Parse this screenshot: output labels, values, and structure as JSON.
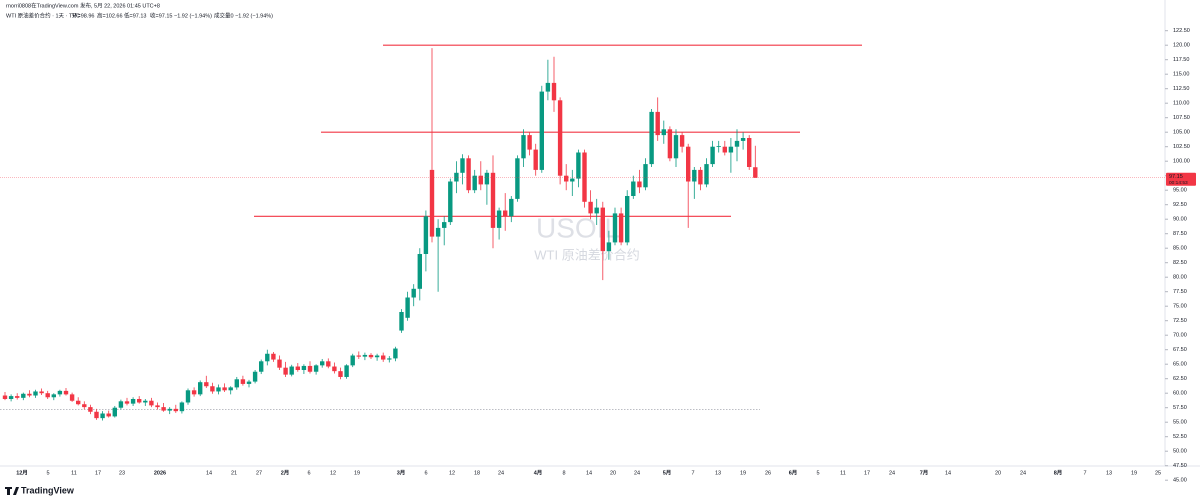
{
  "credit": "rnorri0808在TradingView.com 发布, 5月 22, 2026 01:45 UTC+8",
  "legend": [
    "WTI 原油差价合约 · 1天 · TVC",
    "开=98.96",
    "高=102.66",
    "低=97.13",
    "收=97.15 −1.92 (−1.94%)",
    "成交量0 −1.92 (−1.94%)"
  ],
  "watermark": {
    "symbol": "USOIL",
    "name": "WTI 原油差价合约"
  },
  "countdown": "00:14:53",
  "brand": "TradingView",
  "chart_data": {
    "type": "candlestick",
    "up_color": "#089981",
    "down_color": "#f23645",
    "ylim": [
      44,
      124
    ],
    "yticks": [
      {
        "value": 45,
        "label": "45.00"
      },
      {
        "value": 47.5,
        "label": "47.50"
      },
      {
        "value": 50,
        "label": "50.00"
      },
      {
        "value": 52.5,
        "label": "52.50"
      },
      {
        "value": 55,
        "label": "55.00"
      },
      {
        "value": 57.5,
        "label": "57.50"
      },
      {
        "value": 60,
        "label": "60.00"
      },
      {
        "value": 62.5,
        "label": "62.50"
      },
      {
        "value": 65,
        "label": "65.00"
      },
      {
        "value": 67.5,
        "label": "67.50"
      },
      {
        "value": 70,
        "label": "70.00"
      },
      {
        "value": 72.5,
        "label": "72.50"
      },
      {
        "value": 75,
        "label": "75.00"
      },
      {
        "value": 77.5,
        "label": "77.50"
      },
      {
        "value": 80,
        "label": "80.00"
      },
      {
        "value": 82.5,
        "label": "82.50"
      },
      {
        "value": 85,
        "label": "85.00"
      },
      {
        "value": 87.5,
        "label": "87.50"
      },
      {
        "value": 90,
        "label": "90.00"
      },
      {
        "value": 92.5,
        "label": "92.50"
      },
      {
        "value": 95,
        "label": "95.00"
      },
      {
        "value": 97.5,
        "label": "97.50"
      },
      {
        "value": 100,
        "label": "100.00"
      },
      {
        "value": 102.5,
        "label": "102.50"
      },
      {
        "value": 105,
        "label": "105.00"
      },
      {
        "value": 107.5,
        "label": "107.50"
      },
      {
        "value": 110,
        "label": "110.00"
      },
      {
        "value": 112.5,
        "label": "112.50"
      },
      {
        "value": 115,
        "label": "115.00"
      },
      {
        "value": 117.5,
        "label": "117.50"
      },
      {
        "value": 120,
        "label": "120.00"
      },
      {
        "value": 122.5,
        "label": "122.50"
      }
    ],
    "xticks": [
      "12月",
      "5",
      "11",
      "17",
      "23",
      "2026",
      "14",
      "21",
      "27",
      "2月",
      "6",
      "12",
      "19",
      "3月",
      "6",
      "12",
      "18",
      "24",
      "4月",
      "8",
      "14",
      "20",
      "24",
      "5月",
      "7",
      "13",
      "19",
      "26",
      "6月",
      "5",
      "11",
      "17",
      "24",
      "7月",
      "14",
      "20",
      "24",
      "8月",
      "7",
      "13",
      "19",
      "25"
    ],
    "levels": [
      120,
      105,
      90.5
    ],
    "level_color": "#f23645",
    "dotted_level": 57.2,
    "ohlc": [
      [
        59.6,
        60.2,
        58.8,
        59.0
      ],
      [
        59.0,
        59.8,
        58.6,
        59.5
      ],
      [
        59.5,
        60.0,
        58.9,
        59.2
      ],
      [
        59.2,
        60.1,
        58.8,
        59.9
      ],
      [
        59.9,
        60.5,
        59.3,
        59.6
      ],
      [
        59.6,
        60.6,
        59.2,
        60.3
      ],
      [
        60.3,
        60.8,
        59.7,
        60.0
      ],
      [
        60.0,
        60.4,
        59.0,
        59.3
      ],
      [
        59.3,
        60.0,
        58.8,
        59.8
      ],
      [
        59.8,
        60.6,
        59.4,
        60.4
      ],
      [
        60.4,
        60.9,
        59.6,
        59.8
      ],
      [
        59.8,
        60.1,
        58.5,
        58.7
      ],
      [
        58.7,
        59.3,
        57.9,
        58.1
      ],
      [
        58.1,
        58.6,
        57.2,
        57.6
      ],
      [
        57.6,
        58.0,
        56.4,
        56.8
      ],
      [
        56.8,
        57.3,
        55.4,
        55.7
      ],
      [
        55.7,
        56.9,
        55.3,
        56.5
      ],
      [
        56.5,
        57.0,
        55.8,
        56.0
      ],
      [
        56.0,
        57.8,
        55.8,
        57.5
      ],
      [
        57.5,
        58.9,
        57.2,
        58.6
      ],
      [
        58.6,
        59.2,
        57.9,
        58.2
      ],
      [
        58.2,
        59.3,
        57.8,
        59.0
      ],
      [
        59.0,
        59.5,
        58.2,
        58.4
      ],
      [
        58.4,
        59.0,
        57.8,
        58.7
      ],
      [
        58.7,
        59.2,
        57.6,
        57.9
      ],
      [
        57.9,
        58.4,
        57.2,
        57.6
      ],
      [
        57.6,
        58.3,
        56.8,
        57.0
      ],
      [
        57.0,
        57.6,
        56.4,
        57.3
      ],
      [
        57.3,
        58.0,
        56.6,
        56.9
      ],
      [
        56.9,
        58.6,
        56.5,
        58.4
      ],
      [
        58.4,
        60.8,
        58.0,
        60.5
      ],
      [
        60.5,
        61.0,
        59.4,
        59.8
      ],
      [
        59.8,
        62.2,
        59.5,
        61.9
      ],
      [
        61.9,
        63.0,
        60.9,
        61.2
      ],
      [
        61.2,
        61.8,
        59.9,
        60.3
      ],
      [
        60.3,
        61.5,
        59.8,
        61.0
      ],
      [
        61.0,
        61.7,
        60.2,
        60.5
      ],
      [
        60.5,
        61.2,
        59.8,
        61.0
      ],
      [
        61.0,
        62.8,
        60.6,
        62.4
      ],
      [
        62.4,
        63.0,
        61.3,
        61.6
      ],
      [
        61.6,
        62.3,
        61.0,
        62.0
      ],
      [
        62.0,
        64.0,
        61.7,
        63.7
      ],
      [
        63.7,
        65.8,
        63.3,
        65.5
      ],
      [
        65.5,
        67.5,
        64.8,
        66.8
      ],
      [
        66.8,
        67.1,
        65.4,
        65.8
      ],
      [
        65.8,
        66.5,
        64.0,
        64.4
      ],
      [
        64.4,
        65.4,
        62.8,
        63.2
      ],
      [
        63.2,
        64.9,
        62.9,
        64.6
      ],
      [
        64.6,
        65.2,
        63.7,
        64.0
      ],
      [
        64.0,
        65.0,
        63.3,
        64.7
      ],
      [
        64.7,
        65.5,
        63.4,
        63.7
      ],
      [
        63.7,
        65.0,
        63.2,
        64.8
      ],
      [
        64.8,
        65.9,
        64.4,
        65.5
      ],
      [
        65.5,
        66.0,
        64.3,
        64.6
      ],
      [
        64.6,
        65.3,
        63.4,
        63.8
      ],
      [
        63.8,
        64.4,
        62.4,
        62.8
      ],
      [
        62.8,
        65.0,
        62.5,
        64.8
      ],
      [
        64.8,
        66.8,
        64.5,
        66.5
      ],
      [
        66.5,
        67.2,
        65.9,
        66.3
      ],
      [
        66.3,
        67.0,
        65.7,
        66.6
      ],
      [
        66.6,
        66.9,
        65.9,
        66.2
      ],
      [
        66.2,
        66.8,
        65.6,
        66.5
      ],
      [
        66.5,
        67.0,
        65.4,
        65.8
      ],
      [
        65.8,
        66.4,
        65.3,
        66.0
      ],
      [
        66.0,
        68.0,
        65.5,
        67.7
      ],
      [
        70.8,
        74.5,
        70.4,
        74.0
      ],
      [
        73.0,
        77.5,
        72.5,
        76.5
      ],
      [
        76.5,
        78.8,
        75.0,
        78.0
      ],
      [
        78.0,
        85.0,
        76.0,
        84.0
      ],
      [
        84.0,
        91.5,
        81.0,
        90.5
      ],
      [
        98.5,
        119.5,
        86.0,
        87.0
      ],
      [
        87.0,
        90.0,
        77.5,
        88.5
      ],
      [
        88.5,
        90.5,
        85.5,
        89.5
      ],
      [
        89.5,
        97.0,
        89.0,
        96.5
      ],
      [
        96.5,
        100.0,
        94.5,
        98.0
      ],
      [
        98.0,
        101.2,
        96.0,
        100.5
      ],
      [
        100.5,
        101.0,
        94.5,
        95.0
      ],
      [
        95.0,
        98.5,
        94.5,
        97.5
      ],
      [
        97.5,
        100.0,
        95.0,
        96.0
      ],
      [
        96.0,
        98.5,
        92.5,
        98.0
      ],
      [
        98.0,
        101.0,
        85.0,
        88.5
      ],
      [
        88.5,
        92.0,
        86.5,
        91.5
      ],
      [
        91.5,
        94.5,
        88.0,
        90.5
      ],
      [
        90.5,
        94.0,
        89.5,
        93.5
      ],
      [
        93.5,
        101.0,
        93.0,
        100.5
      ],
      [
        100.5,
        105.5,
        99.0,
        104.5
      ],
      [
        104.5,
        105.0,
        101.0,
        102.0
      ],
      [
        102.0,
        103.0,
        97.5,
        98.5
      ],
      [
        98.5,
        113.0,
        98.0,
        112.0
      ],
      [
        112.0,
        117.5,
        110.5,
        113.5
      ],
      [
        113.5,
        118.0,
        108.5,
        110.5
      ],
      [
        110.5,
        111.0,
        96.0,
        97.5
      ],
      [
        97.5,
        99.5,
        95.0,
        96.5
      ],
      [
        96.5,
        98.5,
        94.0,
        97.0
      ],
      [
        97.0,
        102.0,
        95.5,
        101.5
      ],
      [
        101.5,
        102.0,
        92.0,
        93.0
      ],
      [
        93.0,
        95.0,
        90.0,
        91.0
      ],
      [
        91.0,
        93.5,
        89.0,
        92.0
      ],
      [
        92.0,
        93.0,
        79.5,
        84.5
      ],
      [
        84.5,
        88.0,
        83.0,
        86.0
      ],
      [
        86.0,
        92.0,
        85.5,
        91.0
      ],
      [
        91.0,
        92.0,
        85.5,
        86.0
      ],
      [
        86.0,
        95.0,
        85.5,
        94.0
      ],
      [
        94.0,
        97.5,
        93.5,
        96.5
      ],
      [
        96.5,
        98.5,
        94.5,
        95.5
      ],
      [
        95.5,
        100.5,
        95.0,
        99.5
      ],
      [
        99.5,
        109.0,
        99.0,
        108.5
      ],
      [
        108.5,
        111.0,
        103.5,
        104.5
      ],
      [
        104.5,
        107.0,
        103.0,
        105.5
      ],
      [
        105.5,
        106.0,
        100.0,
        100.5
      ],
      [
        100.5,
        105.5,
        99.0,
        104.5
      ],
      [
        104.5,
        105.0,
        101.5,
        102.5
      ],
      [
        102.5,
        103.0,
        88.5,
        96.5
      ],
      [
        96.5,
        99.0,
        93.5,
        98.5
      ],
      [
        98.5,
        99.0,
        95.0,
        96.0
      ],
      [
        96.0,
        100.5,
        95.5,
        99.5
      ],
      [
        99.5,
        103.5,
        99.0,
        102.5
      ],
      [
        102.5,
        103.5,
        101.5,
        102.6
      ],
      [
        102.5,
        103.5,
        101.0,
        101.5
      ],
      [
        101.5,
        104.0,
        98.0,
        102.5
      ],
      [
        102.5,
        105.5,
        100.0,
        103.5
      ],
      [
        103.5,
        105.0,
        102.0,
        104.0
      ],
      [
        104.0,
        104.5,
        98.5,
        99.0
      ],
      [
        98.96,
        102.66,
        97.13,
        97.15
      ]
    ]
  }
}
